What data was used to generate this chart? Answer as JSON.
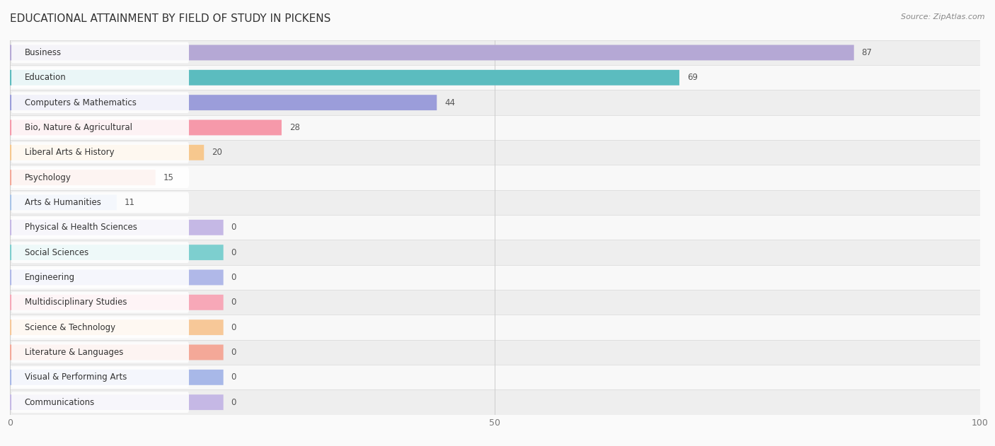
{
  "title": "EDUCATIONAL ATTAINMENT BY FIELD OF STUDY IN PICKENS",
  "source": "Source: ZipAtlas.com",
  "categories": [
    "Business",
    "Education",
    "Computers & Mathematics",
    "Bio, Nature & Agricultural",
    "Liberal Arts & History",
    "Psychology",
    "Arts & Humanities",
    "Physical & Health Sciences",
    "Social Sciences",
    "Engineering",
    "Multidisciplinary Studies",
    "Science & Technology",
    "Literature & Languages",
    "Visual & Performing Arts",
    "Communications"
  ],
  "values": [
    87,
    69,
    44,
    28,
    20,
    15,
    11,
    0,
    0,
    0,
    0,
    0,
    0,
    0,
    0
  ],
  "bar_colors": [
    "#b5a8d5",
    "#5bbcbf",
    "#9b9dda",
    "#f699aa",
    "#f7c88e",
    "#f4a898",
    "#a8c4e8",
    "#c5b8e5",
    "#7dcfcf",
    "#b0b8e8",
    "#f7a8b8",
    "#f7c898",
    "#f4a898",
    "#a8b8e8",
    "#c5b8e5"
  ],
  "xlim": [
    0,
    100
  ],
  "background_color": "#fafafa",
  "row_bg_light": "#f0f0f0",
  "row_bg_dark": "#e8e8e8",
  "title_fontsize": 11,
  "label_fontsize": 8.5,
  "value_fontsize": 8.5,
  "source_fontsize": 8,
  "bar_height": 0.62,
  "zero_bar_width": 22,
  "tick_color": "#777777"
}
